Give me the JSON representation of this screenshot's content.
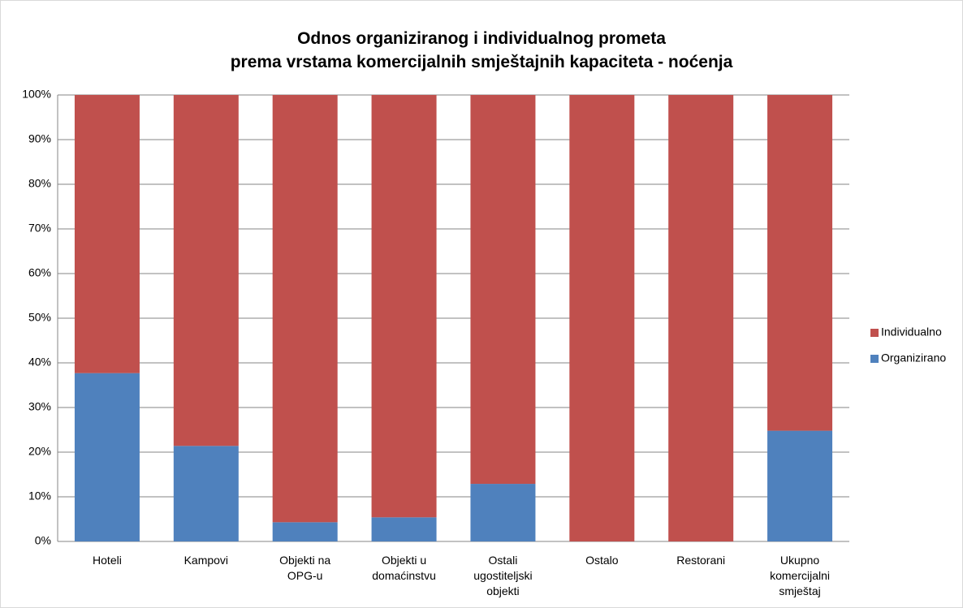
{
  "chart_data": {
    "type": "stacked_bar",
    "title": "Odnos organiziranog i individualnog prometa\nprema vrstama komercijalnih smještajnih kapaciteta - noćenja",
    "categories": [
      "Hoteli",
      "Kampovi",
      "Objekti na OPG-u",
      "Objekti u domaćinstvu",
      "Ostali ugostiteljski objekti",
      "Ostalo",
      "Restorani",
      "Ukupno komercijalni smještaj"
    ],
    "series": [
      {
        "name": "Organizirano",
        "color": "#4f81bd",
        "values": [
          37.7,
          21.4,
          4.3,
          5.4,
          12.9,
          0,
          0,
          24.8
        ]
      },
      {
        "name": "Individualno",
        "color": "#c0504d",
        "values": [
          62.3,
          78.6,
          95.7,
          94.6,
          87.1,
          100,
          100,
          75.2
        ]
      }
    ],
    "ylim": [
      0,
      100
    ],
    "yticks": [
      {
        "value": 0,
        "label": "0%"
      },
      {
        "value": 10,
        "label": "10%"
      },
      {
        "value": 20,
        "label": "20%"
      },
      {
        "value": 30,
        "label": "30%"
      },
      {
        "value": 40,
        "label": "40%"
      },
      {
        "value": 50,
        "label": "50%"
      },
      {
        "value": 60,
        "label": "60%"
      },
      {
        "value": 70,
        "label": "70%"
      },
      {
        "value": 80,
        "label": "80%"
      },
      {
        "value": 90,
        "label": "90%"
      },
      {
        "value": 100,
        "label": "100%"
      }
    ],
    "grid": true,
    "legend": "right"
  }
}
